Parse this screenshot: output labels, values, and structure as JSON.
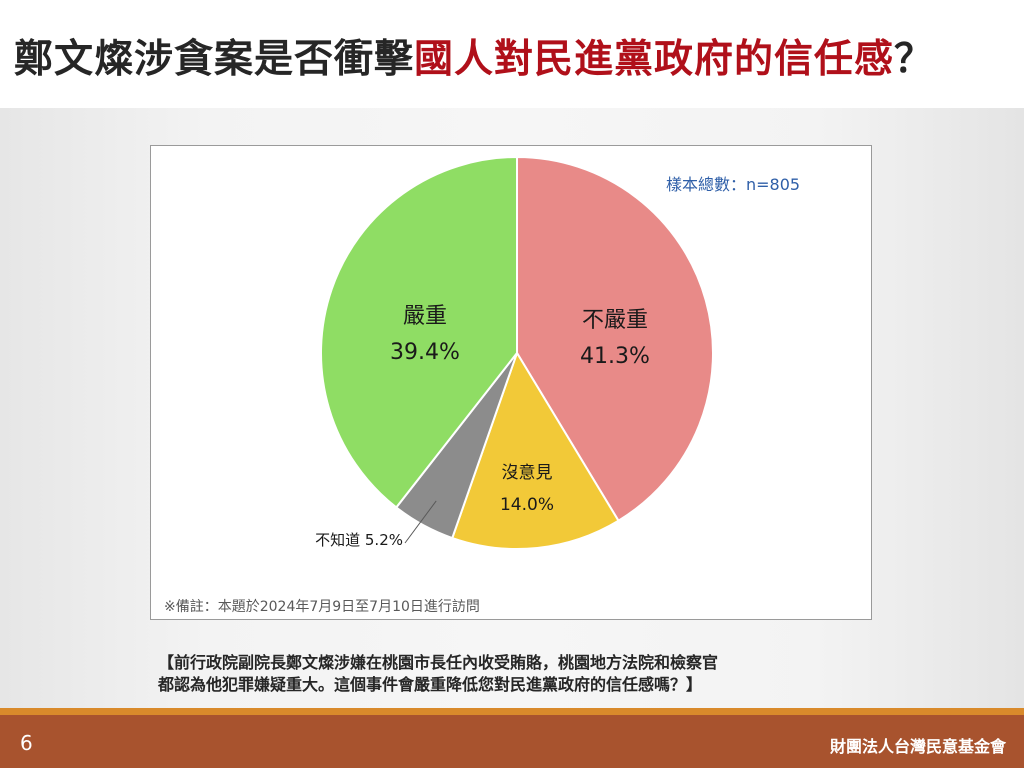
{
  "title": {
    "part1": "鄭文燦涉貪案是否衝擊",
    "part2": "國人對民進黨政府的信任感",
    "part3": "？"
  },
  "colors": {
    "title_highlight": "#b0101a",
    "footer": "#a8532e",
    "accent_rule": "#d98a2b"
  },
  "chart_data": {
    "type": "pie",
    "sample_note": "樣本總數：n=805",
    "slices": [
      {
        "label": "不嚴重",
        "value": 41.3,
        "value_label": "41.3%",
        "color": "#e88a88"
      },
      {
        "label": "沒意見",
        "value": 14.0,
        "value_label": "14.0%",
        "color": "#f2c938"
      },
      {
        "label": "不知道",
        "value": 5.2,
        "value_label": "5.2%",
        "color": "#8c8c8c"
      },
      {
        "label": "嚴重",
        "value": 39.4,
        "value_label": "39.4%",
        "color": "#8fdd64"
      }
    ],
    "footnote": "※備註：本題於2024年7月9日至7月10日進行訪問"
  },
  "question": {
    "line1": "【前行政院副院長鄭文燦涉嫌在桃園市長任內收受賄賂，桃園地方法院和檢察官",
    "line2": "都認為他犯罪嫌疑重大。這個事件會嚴重降低您對民進黨政府的信任感嗎？】"
  },
  "footer": {
    "page_number": "6",
    "organization": "財團法人台灣民意基金會"
  }
}
